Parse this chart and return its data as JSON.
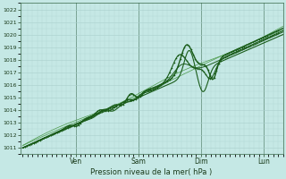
{
  "xlabel": "Pression niveau de la mer( hPa )",
  "ylim": [
    1010.5,
    1022.5
  ],
  "yticks": [
    1011,
    1012,
    1013,
    1014,
    1015,
    1016,
    1017,
    1018,
    1019,
    1020,
    1021,
    1022
  ],
  "xtick_labels": [
    "Ven",
    "Sam",
    "Dim",
    "Lun"
  ],
  "xtick_positions": [
    0.22,
    0.48,
    0.74,
    1.0
  ],
  "xlim": [
    -0.01,
    1.08
  ],
  "bg_color": "#c5e8e5",
  "grid_color": "#aacfcc",
  "line_color_dark": "#1a5c1a",
  "line_color_thin": "#4a9a4a",
  "figsize": [
    3.2,
    2.0
  ],
  "dpi": 100
}
